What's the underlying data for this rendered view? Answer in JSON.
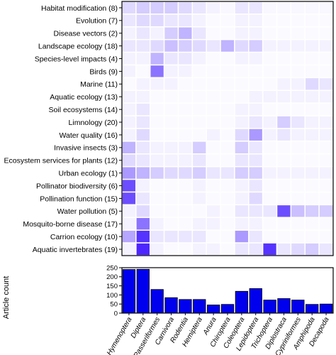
{
  "chart_data": [
    {
      "type": "heatmap",
      "title": "",
      "rows": [
        "Habitat modification (8)",
        "Evolution (7)",
        "Disease vectors (2)",
        "Landscape ecology (18)",
        "Species-level impacts (4)",
        "Birds (9)",
        "Marine (11)",
        "Aquatic ecology (13)",
        "Soil ecosystems (14)",
        "Limnology (20)",
        "Water quality (16)",
        "Invasive insects (3)",
        "Ecosystem services for plants (12)",
        "Urban ecology (1)",
        "Pollinator biodiversity (6)",
        "Pollination function (15)",
        "Water pollution (5)",
        "Mosquito-borne disease (17)",
        "Carrion ecology (10)",
        "Aquatic invertebrates (19)"
      ],
      "columns": [
        "Hymenoptera",
        "Diptera",
        "Passeriformes",
        "Carnivora",
        "Rodentia",
        "Hemiptera",
        "Anura",
        "Chiroptera",
        "Coleoptera",
        "Lepidoptera",
        "Trichoptera",
        "Diplostraca",
        "Cypriniformes",
        "Amphipoda",
        "Decapoda"
      ],
      "values": [
        [
          0.15,
          0.2,
          0.2,
          0.2,
          0.15,
          0.1,
          0.05,
          0.03,
          0.1,
          0.1,
          0.03,
          0.03,
          0.03,
          0.03,
          0.03
        ],
        [
          0.1,
          0.15,
          0.15,
          0.1,
          0.1,
          0.05,
          0.02,
          0.02,
          0.05,
          0.05,
          0.02,
          0.02,
          0.02,
          0.02,
          0.02
        ],
        [
          0.05,
          0.1,
          0.05,
          0.2,
          0.3,
          0.1,
          0.02,
          0.02,
          0.05,
          0.05,
          0.02,
          0.02,
          0.02,
          0.02,
          0.02
        ],
        [
          0.1,
          0.1,
          0.15,
          0.25,
          0.2,
          0.15,
          0.1,
          0.3,
          0.15,
          0.2,
          0.05,
          0.05,
          0.05,
          0.05,
          0.05
        ],
        [
          0.05,
          0.05,
          0.3,
          0.1,
          0.1,
          0.05,
          0.02,
          0.02,
          0.05,
          0.05,
          0.02,
          0.02,
          0.02,
          0.02,
          0.02
        ],
        [
          0.05,
          0.02,
          0.55,
          0.05,
          0.05,
          0.02,
          0.02,
          0.02,
          0.02,
          0.02,
          0.02,
          0.02,
          0.02,
          0.02,
          0.02
        ],
        [
          0.02,
          0.05,
          0.05,
          0.05,
          0.02,
          0.02,
          0.02,
          0.02,
          0.02,
          0.02,
          0.02,
          0.05,
          0.05,
          0.15,
          0.1
        ],
        [
          0.05,
          0.05,
          0.02,
          0.02,
          0.02,
          0.02,
          0.02,
          0.02,
          0.02,
          0.05,
          0.05,
          0.05,
          0.05,
          0.05,
          0.05
        ],
        [
          0.05,
          0.1,
          0.02,
          0.02,
          0.02,
          0.02,
          0.02,
          0.02,
          0.05,
          0.05,
          0.02,
          0.02,
          0.02,
          0.02,
          0.02
        ],
        [
          0.05,
          0.1,
          0.02,
          0.02,
          0.02,
          0.02,
          0.02,
          0.02,
          0.05,
          0.1,
          0.05,
          0.2,
          0.1,
          0.05,
          0.05
        ],
        [
          0.05,
          0.15,
          0.02,
          0.02,
          0.02,
          0.02,
          0.05,
          0.02,
          0.15,
          0.4,
          0.05,
          0.1,
          0.05,
          0.05,
          0.05
        ],
        [
          0.3,
          0.1,
          0.05,
          0.05,
          0.05,
          0.2,
          0.02,
          0.02,
          0.2,
          0.1,
          0.02,
          0.02,
          0.02,
          0.02,
          0.02
        ],
        [
          0.15,
          0.1,
          0.05,
          0.05,
          0.05,
          0.1,
          0.02,
          0.02,
          0.1,
          0.1,
          0.02,
          0.02,
          0.02,
          0.02,
          0.02
        ],
        [
          0.4,
          0.3,
          0.2,
          0.15,
          0.15,
          0.2,
          0.1,
          0.1,
          0.2,
          0.2,
          0.05,
          0.05,
          0.05,
          0.05,
          0.05
        ],
        [
          0.7,
          0.05,
          0.02,
          0.02,
          0.02,
          0.05,
          0.02,
          0.02,
          0.05,
          0.1,
          0.02,
          0.02,
          0.02,
          0.02,
          0.02
        ],
        [
          0.7,
          0.1,
          0.02,
          0.02,
          0.02,
          0.05,
          0.02,
          0.02,
          0.05,
          0.15,
          0.02,
          0.02,
          0.02,
          0.02,
          0.02
        ],
        [
          0.05,
          0.15,
          0.02,
          0.02,
          0.02,
          0.02,
          0.05,
          0.02,
          0.1,
          0.1,
          0.1,
          0.7,
          0.25,
          0.2,
          0.2
        ],
        [
          0.05,
          0.55,
          0.05,
          0.02,
          0.02,
          0.05,
          0.05,
          0.02,
          0.05,
          0.05,
          0.02,
          0.02,
          0.02,
          0.02,
          0.02
        ],
        [
          0.35,
          0.8,
          0.1,
          0.1,
          0.1,
          0.1,
          0.02,
          0.02,
          0.4,
          0.1,
          0.02,
          0.02,
          0.02,
          0.02,
          0.02
        ],
        [
          0.05,
          0.85,
          0.05,
          0.02,
          0.02,
          0.05,
          0.05,
          0.02,
          0.1,
          0.1,
          0.8,
          0.1,
          0.15,
          0.2,
          0.1
        ]
      ]
    },
    {
      "type": "bar",
      "categories": [
        "Hymenoptera",
        "Diptera",
        "Passeriformes",
        "Carnivora",
        "Rodentia",
        "Hemiptera",
        "Anura",
        "Chiroptera",
        "Coleoptera",
        "Lepidoptera",
        "Trichoptera",
        "Diplostraca",
        "Cypriniformes",
        "Amphipoda",
        "Decapoda"
      ],
      "values": [
        240,
        241,
        130,
        85,
        75,
        75,
        45,
        48,
        120,
        135,
        72,
        80,
        72,
        48,
        50
      ],
      "ylabel": "Article count",
      "ylim": [
        0,
        250
      ],
      "yticks": [
        0,
        50,
        100,
        150,
        200,
        250
      ]
    }
  ],
  "colors": {
    "max_cell": "#2d00ff",
    "min_cell": "#ffffff",
    "bar_fill": "#0000ee",
    "border": "#000000"
  }
}
